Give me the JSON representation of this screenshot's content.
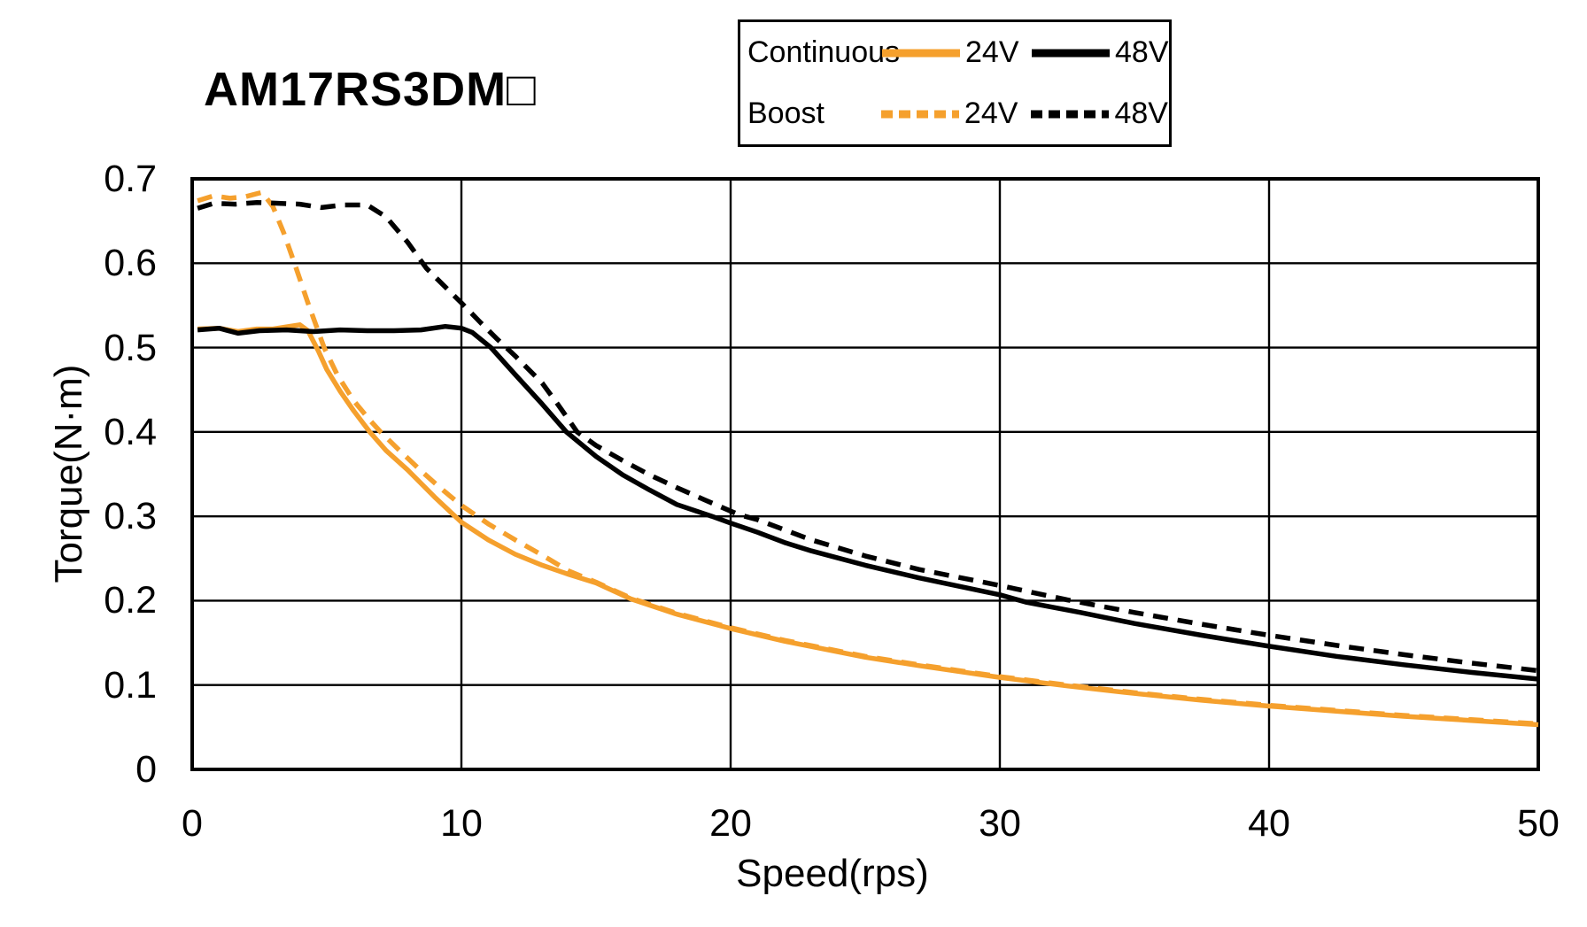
{
  "title": "AM17RS3DM□",
  "legend": {
    "rows": [
      {
        "label": "Continuous",
        "entries": [
          {
            "voltage": "24V",
            "color": "#F5A02D",
            "style": "solid"
          },
          {
            "voltage": "48V",
            "color": "#000000",
            "style": "solid"
          }
        ]
      },
      {
        "label": "Boost",
        "entries": [
          {
            "voltage": "24V",
            "color": "#F5A02D",
            "style": "dashed"
          },
          {
            "voltage": "48V",
            "color": "#000000",
            "style": "dashed"
          }
        ]
      }
    ]
  },
  "chart_data": {
    "type": "line",
    "title": "AM17RS3DM□",
    "xlabel": "Speed(rps)",
    "ylabel": "Torque(N·m)",
    "xlim": [
      0,
      50
    ],
    "ylim": [
      0,
      0.7
    ],
    "grid": true,
    "legend_position": "top",
    "frame_color": "#000000",
    "grid_color": "#000000",
    "xticks": [
      {
        "value": 0,
        "label": "0"
      },
      {
        "value": 10,
        "label": "10"
      },
      {
        "value": 20,
        "label": "20"
      },
      {
        "value": 30,
        "label": "30"
      },
      {
        "value": 40,
        "label": "40"
      },
      {
        "value": 50,
        "label": "50"
      }
    ],
    "yticks": [
      {
        "value": 0,
        "label": "0"
      },
      {
        "value": 0.1,
        "label": "0.1"
      },
      {
        "value": 0.2,
        "label": "0.2"
      },
      {
        "value": 0.3,
        "label": "0.3"
      },
      {
        "value": 0.4,
        "label": "0.4"
      },
      {
        "value": 0.5,
        "label": "0.5"
      },
      {
        "value": 0.6,
        "label": "0.6"
      },
      {
        "value": 0.7,
        "label": "0.7"
      }
    ],
    "series": [
      {
        "name": "Continuous 24V",
        "color": "#F5A02D",
        "dash": "solid",
        "points": [
          [
            0.2,
            0.522
          ],
          [
            1,
            0.523
          ],
          [
            1.7,
            0.519
          ],
          [
            2.4,
            0.522
          ],
          [
            3,
            0.522
          ],
          [
            3.6,
            0.525
          ],
          [
            4,
            0.527
          ],
          [
            4.3,
            0.52
          ],
          [
            4.7,
            0.495
          ],
          [
            5,
            0.474
          ],
          [
            5.5,
            0.448
          ],
          [
            6,
            0.425
          ],
          [
            6.6,
            0.4
          ],
          [
            7.2,
            0.378
          ],
          [
            8,
            0.355
          ],
          [
            9,
            0.323
          ],
          [
            9.6,
            0.305
          ],
          [
            10,
            0.293
          ],
          [
            11,
            0.272
          ],
          [
            12,
            0.255
          ],
          [
            13,
            0.242
          ],
          [
            14,
            0.231
          ],
          [
            15,
            0.221
          ],
          [
            16.3,
            0.202
          ],
          [
            18,
            0.184
          ],
          [
            20,
            0.167
          ],
          [
            22,
            0.152
          ],
          [
            25,
            0.133
          ],
          [
            27,
            0.123
          ],
          [
            30,
            0.109
          ],
          [
            32.5,
            0.099
          ],
          [
            35,
            0.09
          ],
          [
            37.5,
            0.082
          ],
          [
            40,
            0.075
          ],
          [
            42.5,
            0.069
          ],
          [
            45,
            0.063
          ],
          [
            47.5,
            0.058
          ],
          [
            50,
            0.053
          ]
        ]
      },
      {
        "name": "Continuous 48V",
        "color": "#000000",
        "dash": "solid",
        "points": [
          [
            0.2,
            0.521
          ],
          [
            1,
            0.523
          ],
          [
            1.7,
            0.517
          ],
          [
            2.5,
            0.52
          ],
          [
            3.5,
            0.521
          ],
          [
            4.5,
            0.519
          ],
          [
            5.5,
            0.521
          ],
          [
            6.5,
            0.52
          ],
          [
            7.5,
            0.52
          ],
          [
            8.5,
            0.521
          ],
          [
            9.4,
            0.525
          ],
          [
            10,
            0.523
          ],
          [
            10.4,
            0.518
          ],
          [
            11.1,
            0.5
          ],
          [
            12,
            0.468
          ],
          [
            13,
            0.433
          ],
          [
            13.9,
            0.4
          ],
          [
            15,
            0.371
          ],
          [
            16,
            0.349
          ],
          [
            17,
            0.331
          ],
          [
            18,
            0.314
          ],
          [
            19.3,
            0.3
          ],
          [
            20,
            0.292
          ],
          [
            21,
            0.281
          ],
          [
            22,
            0.269
          ],
          [
            23,
            0.259
          ],
          [
            25,
            0.242
          ],
          [
            27,
            0.227
          ],
          [
            30,
            0.207
          ],
          [
            31,
            0.198
          ],
          [
            33,
            0.186
          ],
          [
            35,
            0.173
          ],
          [
            37.5,
            0.159
          ],
          [
            40,
            0.146
          ],
          [
            42.5,
            0.134
          ],
          [
            45,
            0.124
          ],
          [
            47.5,
            0.115
          ],
          [
            50,
            0.107
          ]
        ]
      },
      {
        "name": "Boost 24V",
        "color": "#F5A02D",
        "dash": "dashed",
        "points": [
          [
            0.2,
            0.674
          ],
          [
            0.8,
            0.68
          ],
          [
            1.4,
            0.677
          ],
          [
            2,
            0.679
          ],
          [
            2.6,
            0.684
          ],
          [
            3,
            0.667
          ],
          [
            3.4,
            0.636
          ],
          [
            3.8,
            0.6
          ],
          [
            4.3,
            0.553
          ],
          [
            4.9,
            0.5
          ],
          [
            5.4,
            0.467
          ],
          [
            6,
            0.437
          ],
          [
            6.6,
            0.414
          ],
          [
            7,
            0.4
          ],
          [
            7.7,
            0.378
          ],
          [
            8.5,
            0.354
          ],
          [
            9.2,
            0.334
          ],
          [
            10,
            0.313
          ],
          [
            11,
            0.291
          ],
          [
            12,
            0.272
          ],
          [
            13,
            0.254
          ],
          [
            14,
            0.235
          ],
          [
            15,
            0.222
          ],
          [
            16.3,
            0.203
          ],
          [
            18,
            0.185
          ],
          [
            20,
            0.168
          ],
          [
            22,
            0.153
          ],
          [
            25,
            0.134
          ],
          [
            27,
            0.124
          ],
          [
            30,
            0.11
          ],
          [
            32.5,
            0.1
          ],
          [
            35,
            0.091
          ],
          [
            37.5,
            0.083
          ],
          [
            40,
            0.076
          ],
          [
            42.5,
            0.07
          ],
          [
            45,
            0.064
          ],
          [
            47.5,
            0.059
          ],
          [
            50,
            0.054
          ]
        ]
      },
      {
        "name": "Boost 48V",
        "color": "#000000",
        "dash": "dashed",
        "points": [
          [
            0.2,
            0.665
          ],
          [
            0.8,
            0.671
          ],
          [
            1.6,
            0.67
          ],
          [
            2.4,
            0.672
          ],
          [
            3.2,
            0.671
          ],
          [
            4,
            0.67
          ],
          [
            4.8,
            0.666
          ],
          [
            5.6,
            0.669
          ],
          [
            6.5,
            0.669
          ],
          [
            7.2,
            0.655
          ],
          [
            8,
            0.625
          ],
          [
            8.7,
            0.594
          ],
          [
            9.3,
            0.575
          ],
          [
            10,
            0.553
          ],
          [
            10.7,
            0.53
          ],
          [
            11.3,
            0.511
          ],
          [
            12,
            0.49
          ],
          [
            13,
            0.458
          ],
          [
            13.6,
            0.432
          ],
          [
            14.3,
            0.4
          ],
          [
            15,
            0.384
          ],
          [
            16,
            0.366
          ],
          [
            17,
            0.349
          ],
          [
            18,
            0.334
          ],
          [
            19,
            0.32
          ],
          [
            20.3,
            0.302
          ],
          [
            21,
            0.296
          ],
          [
            22,
            0.284
          ],
          [
            23,
            0.272
          ],
          [
            25,
            0.253
          ],
          [
            27,
            0.237
          ],
          [
            30,
            0.218
          ],
          [
            32.5,
            0.201
          ],
          [
            35,
            0.186
          ],
          [
            37.5,
            0.172
          ],
          [
            40,
            0.159
          ],
          [
            42.5,
            0.147
          ],
          [
            45,
            0.136
          ],
          [
            47.5,
            0.126
          ],
          [
            50,
            0.117
          ]
        ]
      }
    ]
  }
}
